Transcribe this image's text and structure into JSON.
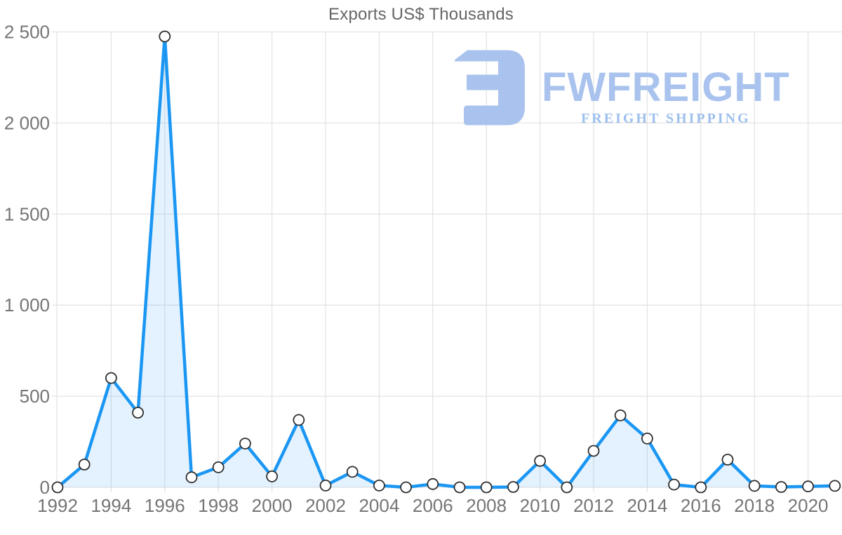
{
  "title": "Exports US$ Thousands",
  "watermark": {
    "brand": "FWFREIGHT",
    "tagline": "FREIGHT SHIPPING",
    "brand_color": "#a9c3ee",
    "tagline_color": "#9dbfee",
    "icon": "freight-logo-icon"
  },
  "chart_data": {
    "type": "area",
    "title": "Exports US$ Thousands",
    "xlabel": "",
    "ylabel": "",
    "x": [
      1992,
      1993,
      1994,
      1995,
      1996,
      1997,
      1998,
      1999,
      2000,
      2001,
      2002,
      2003,
      2004,
      2005,
      2006,
      2007,
      2008,
      2009,
      2010,
      2011,
      2012,
      2013,
      2014,
      2015,
      2016,
      2017,
      2018,
      2019,
      2020,
      2021
    ],
    "values": [
      0,
      125,
      600,
      410,
      2475,
      55,
      110,
      240,
      60,
      370,
      10,
      85,
      10,
      0,
      18,
      0,
      0,
      2,
      145,
      0,
      200,
      395,
      268,
      15,
      0,
      152,
      8,
      2,
      5,
      8
    ],
    "ylim": [
      0,
      2500
    ],
    "y_ticks": [
      0,
      500,
      1000,
      1500,
      2000,
      2500
    ],
    "y_tick_labels": [
      "0",
      "500",
      "1 000",
      "1 500",
      "2 000",
      "2 500"
    ],
    "x_tick_years": [
      1992,
      1994,
      1996,
      1998,
      2000,
      2002,
      2004,
      2006,
      2008,
      2010,
      2012,
      2014,
      2016,
      2018,
      2020
    ],
    "x_tick_labels": [
      "1992",
      "1994",
      "1996",
      "1998",
      "2000",
      "2002",
      "2004",
      "2006",
      "2008",
      "2010",
      "2012",
      "2014",
      "2016",
      "2018",
      "2020"
    ],
    "grid": true,
    "legend": "none",
    "colors": {
      "line": "#1b97f3",
      "fill": "rgba(27, 151, 243, 0.12)",
      "marker_fill": "#ffffff",
      "marker_stroke": "#2f2f2f",
      "gridline": "#e4e4e4",
      "axis_text": "#757575",
      "title_text": "#666666"
    }
  }
}
